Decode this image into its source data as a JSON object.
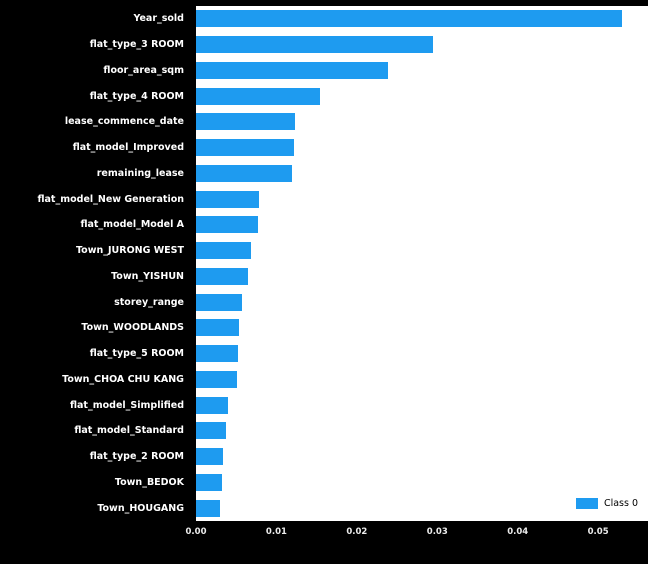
{
  "chart_data": {
    "type": "bar",
    "orientation": "horizontal",
    "title": "",
    "xlabel": "",
    "ylabel": "",
    "grid": false,
    "background_color": "#000000",
    "plot_background_color": "#ffffff",
    "bar_color": "#1e9bf0",
    "label_color": "#ffffff",
    "tick_color": "#ececec",
    "xlim": [
      0,
      0.0562
    ],
    "xticks": [
      0.0,
      0.01,
      0.02,
      0.03,
      0.04,
      0.05
    ],
    "xtick_labels": [
      "0.00",
      "0.01",
      "0.02",
      "0.03",
      "0.04",
      "0.05"
    ],
    "categories": [
      "Year_sold",
      "flat_type_3 ROOM",
      "floor_area_sqm",
      "flat_type_4 ROOM",
      "lease_commence_date",
      "flat_model_Improved",
      "remaining_lease",
      "flat_model_New Generation",
      "flat_model_Model A",
      "Town_JURONG WEST",
      "Town_YISHUN",
      "storey_range",
      "Town_WOODLANDS",
      "flat_type_5 ROOM",
      "Town_CHOA CHU KANG",
      "flat_model_Simplified",
      "flat_model_Standard",
      "flat_type_2 ROOM",
      "Town_BEDOK",
      "Town_HOUGANG"
    ],
    "values": [
      0.053,
      0.0295,
      0.0239,
      0.0154,
      0.0123,
      0.0122,
      0.0119,
      0.0078,
      0.0077,
      0.0068,
      0.0065,
      0.0057,
      0.0053,
      0.0052,
      0.0051,
      0.004,
      0.0037,
      0.0034,
      0.0032,
      0.003
    ],
    "legend": {
      "label": "Class 0",
      "position": "lower right"
    }
  }
}
